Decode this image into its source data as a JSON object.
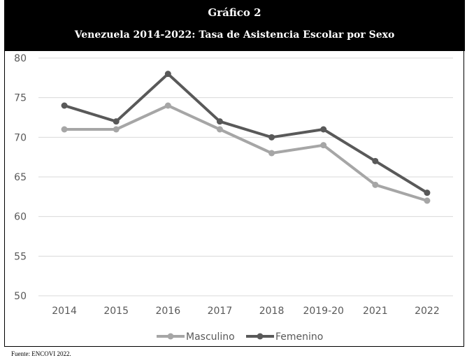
{
  "header": {
    "line1": "Gráfico 2",
    "line2": "Venezuela 2014-2022: Tasa de Asistencia Escolar por Sexo"
  },
  "source": "Fuente: ENCOVI 2022.",
  "chart_data": {
    "type": "line",
    "title": "Venezuela 2014-2022: Tasa de Asistencia Escolar por Sexo",
    "xlabel": "",
    "ylabel": "",
    "categories": [
      "2014",
      "2015",
      "2016",
      "2017",
      "2018",
      "2019-20",
      "2021",
      "2022"
    ],
    "ylim": [
      50,
      80
    ],
    "yticks": [
      "50",
      "55",
      "60",
      "65",
      "70",
      "75",
      "80"
    ],
    "grid": true,
    "legend_position": "bottom",
    "series": [
      {
        "name": "Masculino",
        "color": "#a6a6a6",
        "values": [
          71,
          71,
          74,
          71,
          68,
          69,
          64,
          62
        ]
      },
      {
        "name": "Femenino",
        "color": "#595959",
        "values": [
          74,
          72,
          78,
          72,
          70,
          71,
          67,
          63
        ]
      }
    ]
  }
}
